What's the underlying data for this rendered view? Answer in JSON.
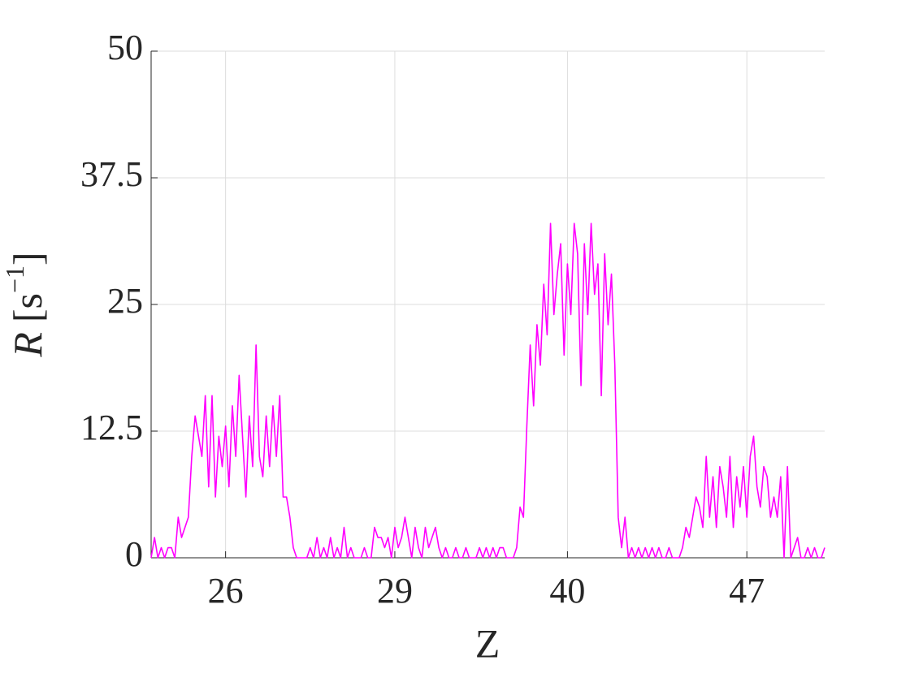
{
  "chart_data": {
    "type": "line",
    "xlabel": "Z",
    "ylabel": {
      "symbol": "R",
      "open": "[s",
      "exponent": "−1",
      "close": "]"
    },
    "xlim": [
      0,
      199
    ],
    "xticks": [
      {
        "value": 22,
        "label": "26"
      },
      {
        "value": 72,
        "label": "29"
      },
      {
        "value": 123,
        "label": "40"
      },
      {
        "value": 176,
        "label": "47"
      }
    ],
    "ylim": [
      0,
      50
    ],
    "yticks": [
      0,
      12.5,
      25,
      37.5,
      50
    ],
    "grid": true,
    "series": [
      {
        "color": "#ff00ff",
        "values": [
          0,
          2,
          0,
          1,
          0,
          1,
          1,
          0,
          4,
          2,
          3,
          4,
          10,
          14,
          12,
          10,
          16,
          7,
          16,
          6,
          12,
          9,
          13,
          7,
          15,
          10,
          18,
          12,
          6,
          14,
          9,
          21,
          10,
          8,
          14,
          9,
          15,
          10,
          16,
          6,
          6,
          4,
          1,
          0,
          0,
          0,
          0,
          1,
          0,
          2,
          0,
          1,
          0,
          2,
          0,
          1,
          0,
          3,
          0,
          1,
          0,
          0,
          0,
          1,
          0,
          0,
          3,
          2,
          2,
          1,
          2,
          0,
          3,
          1,
          2,
          4,
          2,
          0,
          3,
          1,
          0,
          3,
          1,
          2,
          3,
          1,
          0,
          1,
          0,
          0,
          1,
          0,
          0,
          1,
          0,
          0,
          0,
          1,
          0,
          1,
          0,
          1,
          0,
          1,
          1,
          0,
          0,
          0,
          1,
          5,
          4,
          13,
          21,
          15,
          23,
          19,
          27,
          22,
          33,
          24,
          28,
          31,
          20,
          29,
          24,
          33,
          30,
          17,
          31,
          24,
          33,
          26,
          29,
          16,
          30,
          23,
          28,
          19,
          4,
          1,
          4,
          0,
          1,
          0,
          1,
          0,
          1,
          0,
          1,
          0,
          1,
          0,
          0,
          1,
          0,
          0,
          0,
          1,
          3,
          2,
          4,
          6,
          5,
          3,
          10,
          4,
          8,
          3,
          9,
          7,
          4,
          10,
          3,
          8,
          5,
          9,
          4,
          10,
          12,
          7,
          5,
          9,
          8,
          4,
          6,
          4,
          8,
          0,
          9,
          0,
          1,
          2,
          0,
          0,
          1,
          0,
          1,
          0,
          0,
          1
        ]
      }
    ]
  }
}
